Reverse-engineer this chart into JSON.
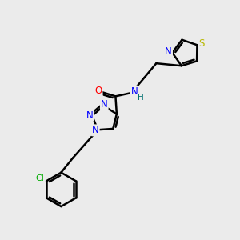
{
  "background_color": "#ebebeb",
  "atom_colors": {
    "C": "#000000",
    "N": "#0000ff",
    "O": "#ff0000",
    "S": "#b8b800",
    "Cl": "#00aa00",
    "H": "#007070"
  },
  "bond_color": "#000000",
  "bond_width": 1.8,
  "figsize": [
    3.0,
    3.0
  ],
  "dpi": 100
}
